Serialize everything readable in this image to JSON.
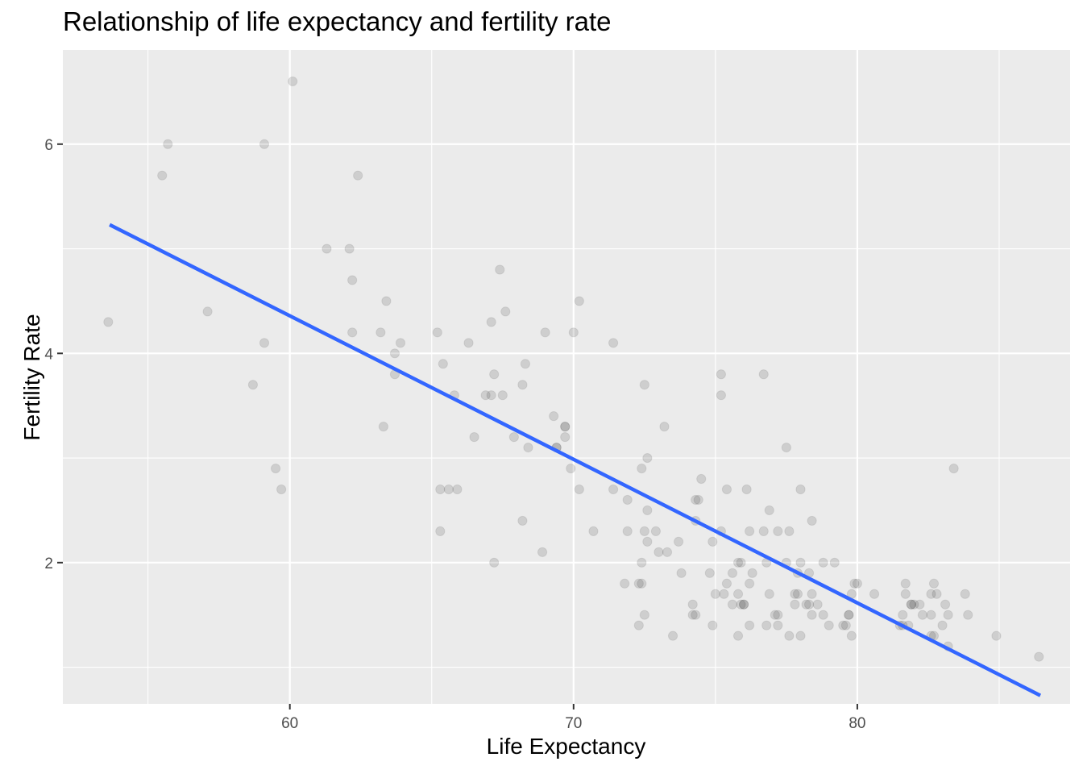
{
  "chart_data": {
    "type": "scatter",
    "title": "Relationship of life expectancy and fertility rate",
    "xlabel": "Life Expectancy",
    "ylabel": "Fertility Rate",
    "xlim": [
      52,
      87.5
    ],
    "ylim": [
      0.65,
      6.9
    ],
    "x_ticks": [
      60,
      70,
      80
    ],
    "y_ticks": [
      2,
      4,
      6
    ],
    "grid": true,
    "point_color": "#000000",
    "point_opacity": 0.12,
    "panel_background": "#EBEBEB",
    "points": [
      [
        53.6,
        4.3
      ],
      [
        55.5,
        5.7
      ],
      [
        55.7,
        6.0
      ],
      [
        57.1,
        4.4
      ],
      [
        58.7,
        3.7
      ],
      [
        59.1,
        6.0
      ],
      [
        59.1,
        4.1
      ],
      [
        59.5,
        2.9
      ],
      [
        59.7,
        2.7
      ],
      [
        60.1,
        6.6
      ],
      [
        61.3,
        5.0
      ],
      [
        62.1,
        5.0
      ],
      [
        62.2,
        4.7
      ],
      [
        62.2,
        4.2
      ],
      [
        62.4,
        5.7
      ],
      [
        63.2,
        4.2
      ],
      [
        63.3,
        3.3
      ],
      [
        63.4,
        4.5
      ],
      [
        63.7,
        4.0
      ],
      [
        63.7,
        3.8
      ],
      [
        63.9,
        4.1
      ],
      [
        65.2,
        4.2
      ],
      [
        65.3,
        2.7
      ],
      [
        65.3,
        2.3
      ],
      [
        65.4,
        3.9
      ],
      [
        65.6,
        2.7
      ],
      [
        65.8,
        3.6
      ],
      [
        65.9,
        2.7
      ],
      [
        66.3,
        4.1
      ],
      [
        66.5,
        3.2
      ],
      [
        66.9,
        3.6
      ],
      [
        67.1,
        3.6
      ],
      [
        67.1,
        4.3
      ],
      [
        67.2,
        2.0
      ],
      [
        67.2,
        3.8
      ],
      [
        67.4,
        4.8
      ],
      [
        67.5,
        3.6
      ],
      [
        67.6,
        4.4
      ],
      [
        67.9,
        3.2
      ],
      [
        68.2,
        2.4
      ],
      [
        68.2,
        3.7
      ],
      [
        68.3,
        3.9
      ],
      [
        68.4,
        3.1
      ],
      [
        68.9,
        2.1
      ],
      [
        69.0,
        4.2
      ],
      [
        69.3,
        3.4
      ],
      [
        69.4,
        3.1
      ],
      [
        69.4,
        3.1
      ],
      [
        69.7,
        3.3
      ],
      [
        69.7,
        3.3
      ],
      [
        69.7,
        3.2
      ],
      [
        69.9,
        2.9
      ],
      [
        70.0,
        4.2
      ],
      [
        70.2,
        2.7
      ],
      [
        70.2,
        4.5
      ],
      [
        70.7,
        2.3
      ],
      [
        71.4,
        4.1
      ],
      [
        71.4,
        2.7
      ],
      [
        71.8,
        1.8
      ],
      [
        71.9,
        2.6
      ],
      [
        71.9,
        2.3
      ],
      [
        72.3,
        1.4
      ],
      [
        72.3,
        1.8
      ],
      [
        72.4,
        2.9
      ],
      [
        72.4,
        2.0
      ],
      [
        72.4,
        1.8
      ],
      [
        72.5,
        3.7
      ],
      [
        72.5,
        2.3
      ],
      [
        72.5,
        1.5
      ],
      [
        72.6,
        2.5
      ],
      [
        72.6,
        3.0
      ],
      [
        72.6,
        2.2
      ],
      [
        72.9,
        2.3
      ],
      [
        73.0,
        2.1
      ],
      [
        73.2,
        3.3
      ],
      [
        73.3,
        2.1
      ],
      [
        73.5,
        1.3
      ],
      [
        73.7,
        2.2
      ],
      [
        73.8,
        1.9
      ],
      [
        74.2,
        1.6
      ],
      [
        74.2,
        1.5
      ],
      [
        74.3,
        2.4
      ],
      [
        74.3,
        2.6
      ],
      [
        74.3,
        1.5
      ],
      [
        74.4,
        2.6
      ],
      [
        74.5,
        2.8
      ],
      [
        74.8,
        1.9
      ],
      [
        74.9,
        2.2
      ],
      [
        74.9,
        1.4
      ],
      [
        75.0,
        1.7
      ],
      [
        75.2,
        2.3
      ],
      [
        75.2,
        3.6
      ],
      [
        75.2,
        3.8
      ],
      [
        75.3,
        1.7
      ],
      [
        75.4,
        2.7
      ],
      [
        75.4,
        1.8
      ],
      [
        75.6,
        1.6
      ],
      [
        75.6,
        1.9
      ],
      [
        75.8,
        2.0
      ],
      [
        75.8,
        1.7
      ],
      [
        75.8,
        1.3
      ],
      [
        75.9,
        2.0
      ],
      [
        75.9,
        1.6
      ],
      [
        76.0,
        1.6
      ],
      [
        76.0,
        1.6
      ],
      [
        76.1,
        2.7
      ],
      [
        76.2,
        2.3
      ],
      [
        76.2,
        1.8
      ],
      [
        76.2,
        1.4
      ],
      [
        76.3,
        1.9
      ],
      [
        76.7,
        2.3
      ],
      [
        76.7,
        3.8
      ],
      [
        76.8,
        2.0
      ],
      [
        76.8,
        1.4
      ],
      [
        76.9,
        2.5
      ],
      [
        76.9,
        1.7
      ],
      [
        77.1,
        1.5
      ],
      [
        77.2,
        2.3
      ],
      [
        77.2,
        1.4
      ],
      [
        77.2,
        1.5
      ],
      [
        77.5,
        2.0
      ],
      [
        77.5,
        3.1
      ],
      [
        77.6,
        2.3
      ],
      [
        77.6,
        1.3
      ],
      [
        77.8,
        1.7
      ],
      [
        77.8,
        1.6
      ],
      [
        77.9,
        1.7
      ],
      [
        77.9,
        1.9
      ],
      [
        78.0,
        2.0
      ],
      [
        78.0,
        1.3
      ],
      [
        78.0,
        2.7
      ],
      [
        78.2,
        1.6
      ],
      [
        78.3,
        1.6
      ],
      [
        78.3,
        1.9
      ],
      [
        78.4,
        2.4
      ],
      [
        78.4,
        1.7
      ],
      [
        78.4,
        1.5
      ],
      [
        78.6,
        1.6
      ],
      [
        78.8,
        2.0
      ],
      [
        78.8,
        1.5
      ],
      [
        79.0,
        1.4
      ],
      [
        79.2,
        2.0
      ],
      [
        79.5,
        1.4
      ],
      [
        79.6,
        1.4
      ],
      [
        79.7,
        1.5
      ],
      [
        79.7,
        1.5
      ],
      [
        79.8,
        1.3
      ],
      [
        79.8,
        1.7
      ],
      [
        79.9,
        1.8
      ],
      [
        80.0,
        1.8
      ],
      [
        80.6,
        1.7
      ],
      [
        81.5,
        1.4
      ],
      [
        81.6,
        1.4
      ],
      [
        81.6,
        1.5
      ],
      [
        81.7,
        1.8
      ],
      [
        81.7,
        1.7
      ],
      [
        81.8,
        1.4
      ],
      [
        81.9,
        1.6
      ],
      [
        81.9,
        1.6
      ],
      [
        82.0,
        1.6
      ],
      [
        82.2,
        1.6
      ],
      [
        82.3,
        1.5
      ],
      [
        82.6,
        1.7
      ],
      [
        82.6,
        1.5
      ],
      [
        82.6,
        1.3
      ],
      [
        82.7,
        1.8
      ],
      [
        82.7,
        1.3
      ],
      [
        82.8,
        1.7
      ],
      [
        83.0,
        1.4
      ],
      [
        83.1,
        1.6
      ],
      [
        83.2,
        1.5
      ],
      [
        83.2,
        1.2
      ],
      [
        83.4,
        2.9
      ],
      [
        83.8,
        1.7
      ],
      [
        83.9,
        1.5
      ],
      [
        84.9,
        1.3
      ],
      [
        86.4,
        1.1
      ]
    ],
    "trend_line": {
      "color": "#3366FF",
      "x": [
        53.65,
        86.45
      ],
      "y": [
        5.23,
        0.73
      ]
    }
  }
}
